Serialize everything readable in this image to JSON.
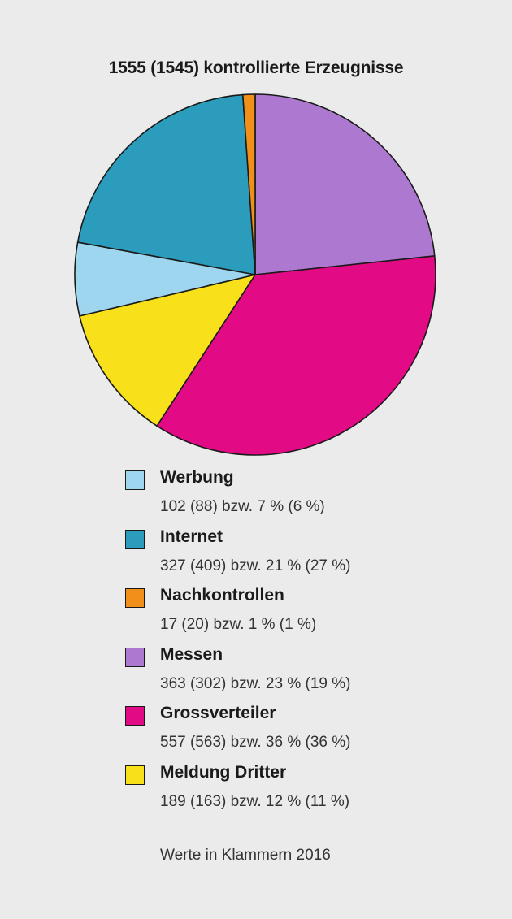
{
  "chart_data": {
    "type": "pie",
    "title": "1555 (1545) kontrollierte Erzeugnisse",
    "slices": [
      {
        "label": "Messen",
        "value": 363,
        "percent": 23,
        "color": "#ad78d0",
        "detail": "363 (302) bzw. 23 % (19 %)"
      },
      {
        "label": "Grossverteiler",
        "value": 557,
        "percent": 36,
        "color": "#e30a85",
        "detail": "557 (563) bzw. 36 % (36 %)"
      },
      {
        "label": "Meldung Dritter",
        "value": 189,
        "percent": 12,
        "color": "#f8e01a",
        "detail": "189 (163) bzw. 12 % (11 %)"
      },
      {
        "label": "Werbung",
        "value": 102,
        "percent": 7,
        "color": "#9fd6ef",
        "detail": "102 (88) bzw. 7 % (6 %)"
      },
      {
        "label": "Internet",
        "value": 327,
        "percent": 21,
        "color": "#2c9cbd",
        "detail": "327 (409) bzw. 21 % (27 %)"
      },
      {
        "label": "Nachkontrollen",
        "value": 17,
        "percent": 1,
        "color": "#f0901a",
        "detail": "17 (20) bzw. 1 % (1 %)"
      }
    ],
    "legend": [
      {
        "label": "Werbung",
        "detail": "102 (88) bzw. 7 % (6 %)",
        "color": "#9fd6ef"
      },
      {
        "label": "Internet",
        "detail": "327 (409) bzw. 21 % (27 %)",
        "color": "#2c9cbd"
      },
      {
        "label": "Nachkontrollen",
        "detail": "17 (20) bzw. 1 % (1 %)",
        "color": "#f0901a"
      },
      {
        "label": "Messen",
        "detail": "363 (302) bzw. 23 % (19 %)",
        "color": "#ad78d0"
      },
      {
        "label": "Grossverteiler",
        "detail": "557 (563) bzw. 36 % (36 %)",
        "color": "#e30a85"
      },
      {
        "label": "Meldung Dritter",
        "detail": "189 (163) bzw. 12 % (11 %)",
        "color": "#f8e01a"
      }
    ],
    "legend_position": "bottom",
    "footnote": "Werte in Klammern 2016"
  }
}
